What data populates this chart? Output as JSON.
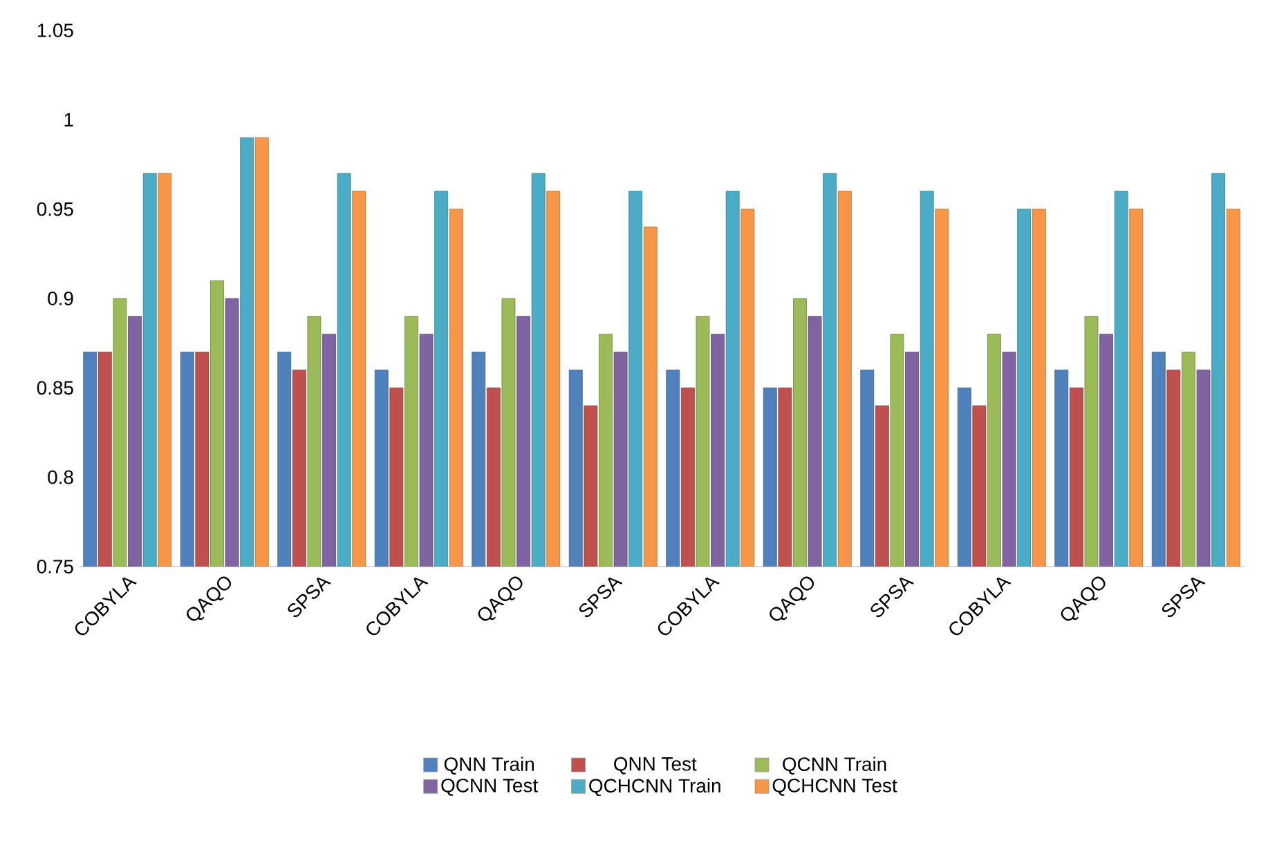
{
  "chart_data": {
    "type": "bar",
    "categories": [
      "COBYLA",
      "QAQO",
      "SPSA",
      "COBYLA",
      "QAQO",
      "SPSA",
      "COBYLA",
      "QAQO",
      "SPSA",
      "COBYLA",
      "QAQO",
      "SPSA"
    ],
    "series": [
      {
        "name": "QNN Train",
        "color": "#4f81bd",
        "values": [
          0.87,
          0.87,
          0.87,
          0.86,
          0.87,
          0.86,
          0.86,
          0.85,
          0.86,
          0.85,
          0.86,
          0.87
        ]
      },
      {
        "name": "QNN Test",
        "color": "#c0504d",
        "values": [
          0.87,
          0.87,
          0.86,
          0.85,
          0.85,
          0.84,
          0.85,
          0.85,
          0.84,
          0.84,
          0.85,
          0.86
        ]
      },
      {
        "name": "QCNN Train",
        "color": "#9bbb59",
        "values": [
          0.9,
          0.91,
          0.89,
          0.89,
          0.9,
          0.88,
          0.89,
          0.9,
          0.88,
          0.88,
          0.89,
          0.87
        ]
      },
      {
        "name": "QCNN Test",
        "color": "#8064a2",
        "values": [
          0.89,
          0.9,
          0.88,
          0.88,
          0.89,
          0.87,
          0.88,
          0.89,
          0.87,
          0.87,
          0.88,
          0.86
        ]
      },
      {
        "name": "QCHCNN Train",
        "color": "#4bacc6",
        "values": [
          0.97,
          0.99,
          0.97,
          0.96,
          0.97,
          0.96,
          0.96,
          0.97,
          0.96,
          0.95,
          0.96,
          0.97
        ]
      },
      {
        "name": "QCHCNN Test",
        "color": "#f79646",
        "values": [
          0.97,
          0.99,
          0.96,
          0.95,
          0.96,
          0.94,
          0.95,
          0.96,
          0.95,
          0.95,
          0.95,
          0.95
        ]
      }
    ],
    "ylim": [
      0.75,
      1.05
    ],
    "yticks": [
      0.75,
      0.8,
      0.85,
      0.9,
      0.95,
      1,
      1.05
    ],
    "grid": false,
    "legend": "bottom"
  }
}
